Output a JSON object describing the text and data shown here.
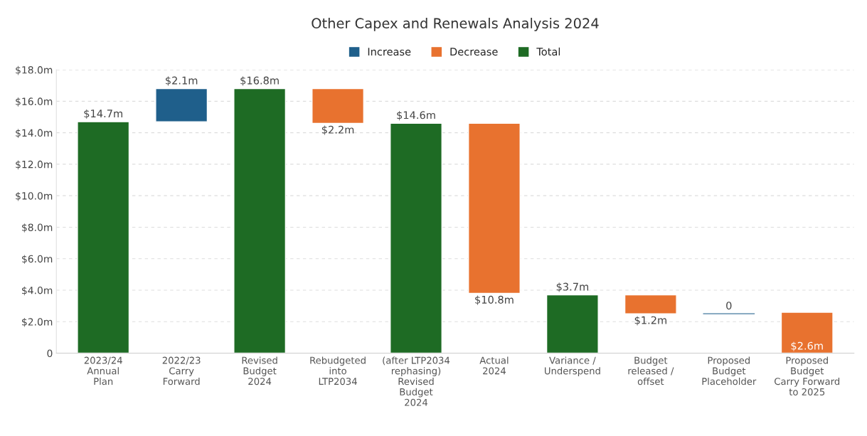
{
  "chart_data": {
    "type": "bar",
    "title": "Other Capex and Renewals Analysis 2024",
    "categories": [
      "2023/24\nAnnual\nPlan",
      "2022/23\nCarry\nForward",
      "Revised\nBudget\n2024",
      "Rebudgeted\ninto\nLTP2034",
      "(after LTP2034\nrephasing)\nRevised\nBudget\n2024",
      "Actual\n2024",
      "Variance /\nUnderspend",
      "Budget\nreleased /\noffset",
      "Proposed\nBudget\nPlaceholder",
      "Proposed\nBudget\nCarry Forward\nto 2025"
    ],
    "series": [
      {
        "name": "Increase",
        "color": "#1f5f8b",
        "values": [
          null,
          2.1,
          null,
          null,
          null,
          null,
          null,
          null,
          0,
          null
        ],
        "base": [
          null,
          14.7,
          null,
          null,
          null,
          null,
          null,
          null,
          2.5,
          null
        ],
        "value_labels": [
          null,
          "$2.1m",
          null,
          null,
          null,
          null,
          null,
          null,
          "0",
          null
        ]
      },
      {
        "name": "Decrease",
        "color": "#e8722f",
        "values": [
          null,
          null,
          null,
          2.2,
          null,
          10.8,
          null,
          1.2,
          null,
          2.6
        ],
        "base": [
          null,
          null,
          null,
          14.6,
          null,
          3.8,
          null,
          2.5,
          null,
          0
        ],
        "value_labels": [
          null,
          null,
          null,
          "$2.2m",
          null,
          "$10.8m",
          null,
          "$1.2m",
          null,
          "$2.6m"
        ]
      },
      {
        "name": "Total",
        "color": "#1e6b24",
        "values": [
          14.7,
          null,
          16.8,
          null,
          14.6,
          null,
          3.7,
          null,
          null,
          null
        ],
        "value_labels": [
          "$14.7m",
          null,
          "$16.8m",
          null,
          "$14.6m",
          null,
          "$3.7m",
          null,
          null,
          null
        ]
      }
    ],
    "ylim": [
      0,
      18
    ],
    "yticks": [
      {
        "value": 0,
        "label": "0"
      },
      {
        "value": 2,
        "label": "$2.0m"
      },
      {
        "value": 4,
        "label": "$4.0m"
      },
      {
        "value": 6,
        "label": "$6.0m"
      },
      {
        "value": 8,
        "label": "$8.0m"
      },
      {
        "value": 10,
        "label": "$10.0m"
      },
      {
        "value": 12,
        "label": "$12.0m"
      },
      {
        "value": 14,
        "label": "$14.0m"
      },
      {
        "value": 16,
        "label": "$16.0m"
      },
      {
        "value": 18,
        "label": "$18.0m"
      }
    ],
    "grid": "y",
    "legend": "top"
  }
}
